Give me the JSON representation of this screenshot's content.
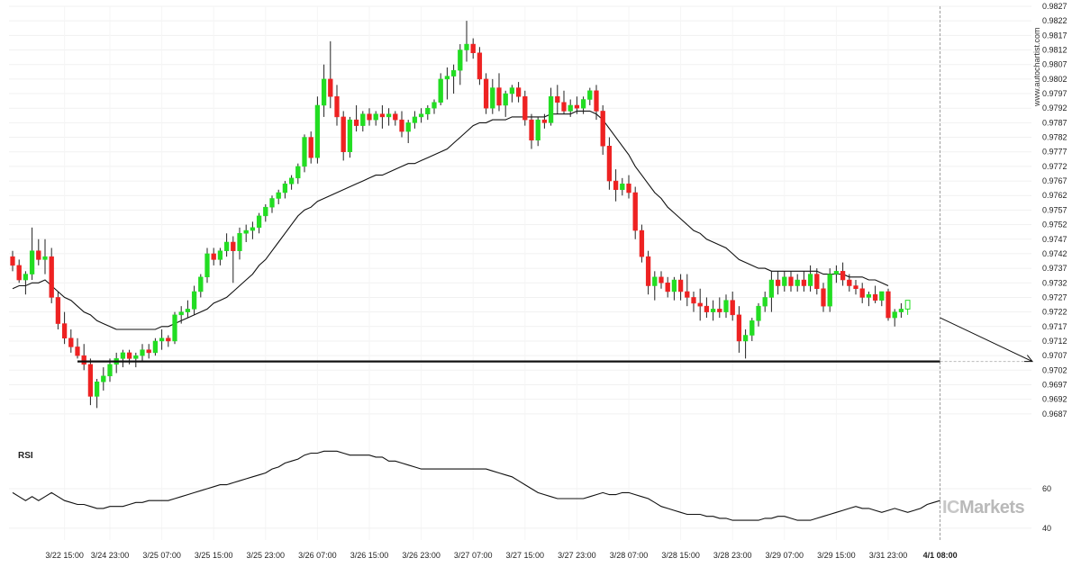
{
  "watermark": "www.autochartist.com",
  "brand": {
    "prefix": "IC",
    "name": "Markets"
  },
  "chart_data": [
    {
      "type": "candlestick",
      "title": "",
      "ylim": [
        0.9682,
        0.9827
      ],
      "yticks": [
        0.9827,
        0.9822,
        0.9817,
        0.9812,
        0.9807,
        0.9802,
        0.9797,
        0.9792,
        0.9787,
        0.9782,
        0.9777,
        0.9772,
        0.9767,
        0.9762,
        0.9757,
        0.9752,
        0.9747,
        0.9742,
        0.9737,
        0.9732,
        0.9727,
        0.9722,
        0.9717,
        0.9712,
        0.9707,
        0.9702,
        0.9697,
        0.9692,
        0.9687
      ],
      "xticks": [
        {
          "i": 8,
          "label": "3/22 15:00"
        },
        {
          "i": 15,
          "label": "3/24 23:00"
        },
        {
          "i": 23,
          "label": "3/25 07:00"
        },
        {
          "i": 31,
          "label": "3/25 15:00"
        },
        {
          "i": 39,
          "label": "3/25 23:00"
        },
        {
          "i": 47,
          "label": "3/26 07:00"
        },
        {
          "i": 55,
          "label": "3/26 15:00"
        },
        {
          "i": 63,
          "label": "3/26 23:00"
        },
        {
          "i": 71,
          "label": "3/27 07:00"
        },
        {
          "i": 79,
          "label": "3/27 15:00"
        },
        {
          "i": 87,
          "label": "3/27 23:00"
        },
        {
          "i": 95,
          "label": "3/28 07:00"
        },
        {
          "i": 103,
          "label": "3/28 15:00"
        },
        {
          "i": 111,
          "label": "3/28 23:00"
        },
        {
          "i": 119,
          "label": "3/29 07:00"
        },
        {
          "i": 127,
          "label": "3/29 15:00"
        },
        {
          "i": 135,
          "label": "3/31 23:00"
        },
        {
          "i": 143,
          "label": "4/1 08:00",
          "highlight": true
        }
      ],
      "colors": {
        "up": "#22dd22",
        "down": "#ee2222",
        "last": "#ffffff",
        "wick": "#222222"
      },
      "ohlc": [
        [
          0.9741,
          0.9743,
          0.9736,
          0.9738
        ],
        [
          0.9738,
          0.974,
          0.9732,
          0.9733
        ],
        [
          0.9733,
          0.9736,
          0.9728,
          0.9735
        ],
        [
          0.9735,
          0.9751,
          0.9733,
          0.9743
        ],
        [
          0.9743,
          0.9747,
          0.9738,
          0.974
        ],
        [
          0.974,
          0.9747,
          0.9735,
          0.9741
        ],
        [
          0.9741,
          0.9744,
          0.9725,
          0.9727
        ],
        [
          0.9727,
          0.9729,
          0.9716,
          0.9718
        ],
        [
          0.9718,
          0.9722,
          0.9711,
          0.9713
        ],
        [
          0.9713,
          0.9716,
          0.9708,
          0.971
        ],
        [
          0.971,
          0.9713,
          0.9706,
          0.9707
        ],
        [
          0.9707,
          0.9711,
          0.9702,
          0.9704
        ],
        [
          0.9704,
          0.9706,
          0.969,
          0.9693
        ],
        [
          0.9693,
          0.9699,
          0.9689,
          0.9698
        ],
        [
          0.9698,
          0.9703,
          0.9695,
          0.97
        ],
        [
          0.97,
          0.9706,
          0.9698,
          0.9704
        ],
        [
          0.9704,
          0.9708,
          0.9701,
          0.9706
        ],
        [
          0.9706,
          0.9709,
          0.9703,
          0.9708
        ],
        [
          0.9708,
          0.9709,
          0.9704,
          0.9706
        ],
        [
          0.9706,
          0.9708,
          0.9703,
          0.9707
        ],
        [
          0.9707,
          0.9711,
          0.9705,
          0.9709
        ],
        [
          0.9709,
          0.9711,
          0.9706,
          0.9708
        ],
        [
          0.9708,
          0.9713,
          0.9707,
          0.9712
        ],
        [
          0.9712,
          0.9716,
          0.9709,
          0.9713
        ],
        [
          0.9713,
          0.9714,
          0.971,
          0.9712
        ],
        [
          0.9712,
          0.9722,
          0.9711,
          0.9721
        ],
        [
          0.9721,
          0.9724,
          0.9718,
          0.9722
        ],
        [
          0.9722,
          0.9726,
          0.972,
          0.9723
        ],
        [
          0.9723,
          0.9731,
          0.9721,
          0.9729
        ],
        [
          0.9729,
          0.9735,
          0.9727,
          0.9734
        ],
        [
          0.9734,
          0.9744,
          0.9732,
          0.9742
        ],
        [
          0.9742,
          0.9744,
          0.9738,
          0.974
        ],
        [
          0.974,
          0.9744,
          0.9738,
          0.9743
        ],
        [
          0.9743,
          0.9749,
          0.9741,
          0.9746
        ],
        [
          0.9746,
          0.9748,
          0.9732,
          0.9743
        ],
        [
          0.9743,
          0.9751,
          0.974,
          0.9749
        ],
        [
          0.9749,
          0.9752,
          0.9746,
          0.975
        ],
        [
          0.975,
          0.9753,
          0.9747,
          0.9751
        ],
        [
          0.9751,
          0.9756,
          0.9749,
          0.9755
        ],
        [
          0.9755,
          0.9759,
          0.9753,
          0.9758
        ],
        [
          0.9758,
          0.9762,
          0.9756,
          0.9761
        ],
        [
          0.9761,
          0.9764,
          0.9759,
          0.9763
        ],
        [
          0.9763,
          0.9767,
          0.9761,
          0.9766
        ],
        [
          0.9766,
          0.9769,
          0.9764,
          0.9768
        ],
        [
          0.9768,
          0.9773,
          0.9766,
          0.9772
        ],
        [
          0.9772,
          0.9783,
          0.977,
          0.9782
        ],
        [
          0.9782,
          0.9784,
          0.9773,
          0.9775
        ],
        [
          0.9775,
          0.9796,
          0.9773,
          0.9793
        ],
        [
          0.9793,
          0.9807,
          0.9789,
          0.9802
        ],
        [
          0.9802,
          0.9815,
          0.9792,
          0.9796
        ],
        [
          0.9796,
          0.98,
          0.9786,
          0.9789
        ],
        [
          0.9789,
          0.9791,
          0.9774,
          0.9777
        ],
        [
          0.9777,
          0.9789,
          0.9775,
          0.9788
        ],
        [
          0.9788,
          0.9793,
          0.9784,
          0.9786
        ],
        [
          0.9786,
          0.9791,
          0.9784,
          0.979
        ],
        [
          0.979,
          0.9792,
          0.9786,
          0.9788
        ],
        [
          0.9788,
          0.9791,
          0.9786,
          0.979
        ],
        [
          0.979,
          0.9793,
          0.9785,
          0.9789
        ],
        [
          0.9789,
          0.9792,
          0.9786,
          0.979
        ],
        [
          0.979,
          0.9791,
          0.9786,
          0.9788
        ],
        [
          0.9788,
          0.9791,
          0.9782,
          0.9784
        ],
        [
          0.9784,
          0.9788,
          0.978,
          0.9787
        ],
        [
          0.9787,
          0.9791,
          0.9785,
          0.9789
        ],
        [
          0.9789,
          0.9792,
          0.9787,
          0.979
        ],
        [
          0.979,
          0.9793,
          0.9788,
          0.9792
        ],
        [
          0.9792,
          0.9795,
          0.979,
          0.9794
        ],
        [
          0.9794,
          0.9804,
          0.9793,
          0.9802
        ],
        [
          0.9802,
          0.9806,
          0.9795,
          0.9803
        ],
        [
          0.9803,
          0.9807,
          0.9797,
          0.9805
        ],
        [
          0.9805,
          0.9814,
          0.98,
          0.9812
        ],
        [
          0.9812,
          0.9822,
          0.9808,
          0.9814
        ],
        [
          0.9814,
          0.9816,
          0.9809,
          0.9811
        ],
        [
          0.9811,
          0.9813,
          0.98,
          0.9802
        ],
        [
          0.9802,
          0.9804,
          0.979,
          0.9792
        ],
        [
          0.9792,
          0.9802,
          0.979,
          0.9799
        ],
        [
          0.9799,
          0.9804,
          0.9791,
          0.9793
        ],
        [
          0.9793,
          0.9798,
          0.9789,
          0.9797
        ],
        [
          0.9797,
          0.98,
          0.9794,
          0.9799
        ],
        [
          0.9799,
          0.9801,
          0.9794,
          0.9796
        ],
        [
          0.9796,
          0.9798,
          0.9786,
          0.9788
        ],
        [
          0.9788,
          0.979,
          0.9778,
          0.9781
        ],
        [
          0.9781,
          0.9789,
          0.9779,
          0.9788
        ],
        [
          0.9788,
          0.979,
          0.9785,
          0.9787
        ],
        [
          0.9787,
          0.9799,
          0.9786,
          0.9796
        ],
        [
          0.9796,
          0.98,
          0.979,
          0.9794
        ],
        [
          0.9794,
          0.9798,
          0.979,
          0.9791
        ],
        [
          0.9791,
          0.9795,
          0.9789,
          0.9793
        ],
        [
          0.9793,
          0.9796,
          0.979,
          0.9792
        ],
        [
          0.9792,
          0.9796,
          0.979,
          0.9795
        ],
        [
          0.9795,
          0.9799,
          0.9793,
          0.9798
        ],
        [
          0.9798,
          0.98,
          0.9788,
          0.9791
        ],
        [
          0.9791,
          0.9793,
          0.9776,
          0.9779
        ],
        [
          0.9779,
          0.9782,
          0.9764,
          0.9767
        ],
        [
          0.9767,
          0.9771,
          0.976,
          0.9764
        ],
        [
          0.9764,
          0.9768,
          0.9762,
          0.9766
        ],
        [
          0.9766,
          0.9769,
          0.9761,
          0.9763
        ],
        [
          0.9763,
          0.9765,
          0.9747,
          0.975
        ],
        [
          0.975,
          0.9752,
          0.9739,
          0.9741
        ],
        [
          0.9741,
          0.9743,
          0.9728,
          0.9731
        ],
        [
          0.9731,
          0.9736,
          0.9726,
          0.9734
        ],
        [
          0.9734,
          0.9736,
          0.973,
          0.9732
        ],
        [
          0.9732,
          0.9734,
          0.9727,
          0.9729
        ],
        [
          0.9729,
          0.9734,
          0.9726,
          0.9733
        ],
        [
          0.9733,
          0.9735,
          0.9726,
          0.9729
        ],
        [
          0.9729,
          0.9735,
          0.9724,
          0.9727
        ],
        [
          0.9727,
          0.9729,
          0.9722,
          0.9725
        ],
        [
          0.9725,
          0.973,
          0.9719,
          0.9724
        ],
        [
          0.9724,
          0.9727,
          0.972,
          0.9722
        ],
        [
          0.9722,
          0.9726,
          0.9719,
          0.9723
        ],
        [
          0.9723,
          0.9727,
          0.972,
          0.9722
        ],
        [
          0.9722,
          0.9728,
          0.972,
          0.9726
        ],
        [
          0.9726,
          0.9729,
          0.9719,
          0.9721
        ],
        [
          0.9721,
          0.9724,
          0.9708,
          0.9712
        ],
        [
          0.9712,
          0.9716,
          0.9706,
          0.9714
        ],
        [
          0.9714,
          0.972,
          0.9712,
          0.9719
        ],
        [
          0.9719,
          0.9725,
          0.9717,
          0.9724
        ],
        [
          0.9724,
          0.9729,
          0.9722,
          0.9727
        ],
        [
          0.9727,
          0.9736,
          0.9722,
          0.9733
        ],
        [
          0.9733,
          0.9736,
          0.9728,
          0.9731
        ],
        [
          0.9731,
          0.9736,
          0.9729,
          0.9734
        ],
        [
          0.9734,
          0.9736,
          0.9729,
          0.9731
        ],
        [
          0.9731,
          0.9735,
          0.9729,
          0.9733
        ],
        [
          0.9733,
          0.9736,
          0.9729,
          0.9731
        ],
        [
          0.9731,
          0.9738,
          0.9729,
          0.9735
        ],
        [
          0.9735,
          0.9737,
          0.9728,
          0.973
        ],
        [
          0.973,
          0.9732,
          0.9722,
          0.9724
        ],
        [
          0.9724,
          0.9737,
          0.9722,
          0.9735
        ],
        [
          0.9735,
          0.9738,
          0.9732,
          0.9736
        ],
        [
          0.9736,
          0.9739,
          0.9731,
          0.9733
        ],
        [
          0.9733,
          0.9735,
          0.9729,
          0.9731
        ],
        [
          0.9731,
          0.9733,
          0.9728,
          0.973
        ],
        [
          0.973,
          0.9732,
          0.9725,
          0.9727
        ],
        [
          0.9727,
          0.9729,
          0.9724,
          0.9728
        ],
        [
          0.9728,
          0.9731,
          0.9725,
          0.9726
        ],
        [
          0.9726,
          0.9729,
          0.9724,
          0.9729
        ],
        [
          0.9729,
          0.973,
          0.9719,
          0.972
        ],
        [
          0.972,
          0.9723,
          0.9717,
          0.9722
        ],
        [
          0.9722,
          0.9725,
          0.972,
          0.9723
        ],
        [
          0.9723,
          0.9726,
          0.9721,
          0.9726
        ]
      ],
      "moving_average": [
        0.973,
        0.9731,
        0.9731,
        0.9732,
        0.9732,
        0.9733,
        0.9731,
        0.9729,
        0.9727,
        0.9726,
        0.9724,
        0.9722,
        0.9721,
        0.9719,
        0.9718,
        0.9717,
        0.9716,
        0.9716,
        0.9716,
        0.9716,
        0.9716,
        0.9716,
        0.9716,
        0.9717,
        0.9717,
        0.9718,
        0.9719,
        0.972,
        0.9721,
        0.9722,
        0.9723,
        0.9725,
        0.9726,
        0.9727,
        0.9729,
        0.9731,
        0.9733,
        0.9735,
        0.9738,
        0.974,
        0.9743,
        0.9746,
        0.9749,
        0.9752,
        0.9755,
        0.9757,
        0.9758,
        0.976,
        0.9761,
        0.9762,
        0.9763,
        0.9764,
        0.9765,
        0.9766,
        0.9767,
        0.9768,
        0.9769,
        0.9769,
        0.977,
        0.9771,
        0.9772,
        0.9773,
        0.9773,
        0.9774,
        0.9775,
        0.9776,
        0.9777,
        0.9778,
        0.978,
        0.9782,
        0.9784,
        0.9786,
        0.9787,
        0.9787,
        0.9788,
        0.9788,
        0.9788,
        0.9789,
        0.9789,
        0.9789,
        0.9789,
        0.9789,
        0.9789,
        0.979,
        0.979,
        0.979,
        0.979,
        0.9791,
        0.9791,
        0.9791,
        0.979,
        0.9788,
        0.9785,
        0.9782,
        0.9779,
        0.9776,
        0.9772,
        0.9769,
        0.9766,
        0.9763,
        0.9761,
        0.9758,
        0.9756,
        0.9754,
        0.9752,
        0.975,
        0.9749,
        0.9747,
        0.9746,
        0.9745,
        0.9744,
        0.9742,
        0.974,
        0.9739,
        0.9738,
        0.9737,
        0.9737,
        0.9736,
        0.9736,
        0.9736,
        0.9736,
        0.9736,
        0.9736,
        0.9736,
        0.9736,
        0.9735,
        0.9735,
        0.9735,
        0.9735,
        0.9734,
        0.9734,
        0.9734,
        0.9733,
        0.9733,
        0.9732,
        0.9731
      ],
      "support_level": 0.9705,
      "support_start_index": 10,
      "forecast_line": {
        "from_index": 143,
        "from_value": 0.972,
        "to_value": 0.9705
      },
      "current_index": 143
    },
    {
      "type": "line",
      "title": "RSI",
      "ylim": [
        34,
        86
      ],
      "yticks": [
        60,
        40
      ],
      "values": [
        58,
        56,
        54,
        56,
        54,
        56,
        58,
        56,
        54,
        53,
        52,
        52,
        51,
        50,
        50,
        51,
        51,
        51,
        52,
        53,
        53,
        54,
        54,
        54,
        54,
        55,
        56,
        57,
        58,
        59,
        60,
        61,
        62,
        62,
        63,
        64,
        65,
        66,
        67,
        68,
        70,
        71,
        73,
        74,
        75,
        77,
        78,
        78,
        79,
        79,
        79,
        78,
        77,
        77,
        77,
        77,
        76,
        76,
        74,
        74,
        73,
        72,
        71,
        70,
        70,
        70,
        70,
        70,
        70,
        70,
        70,
        70,
        70,
        70,
        69,
        68,
        67,
        66,
        64,
        62,
        60,
        58,
        57,
        56,
        55,
        55,
        55,
        55,
        55,
        56,
        57,
        58,
        57,
        57,
        58,
        58,
        57,
        56,
        55,
        53,
        51,
        50,
        49,
        48,
        47,
        47,
        47,
        46,
        46,
        45,
        45,
        44,
        44,
        44,
        44,
        44,
        45,
        45,
        46,
        46,
        45,
        44,
        44,
        44,
        45,
        46,
        47,
        48,
        49,
        50,
        51,
        50,
        50,
        49,
        48,
        49,
        50,
        49,
        48,
        49,
        50,
        52,
        53,
        54
      ]
    }
  ]
}
